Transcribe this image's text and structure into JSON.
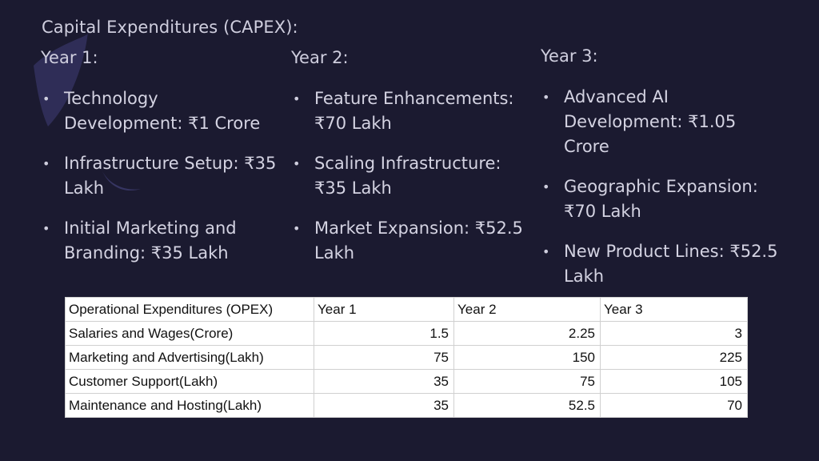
{
  "title": "Capital Expenditures (CAPEX):",
  "capex": [
    {
      "heading": "Year 1:",
      "items": [
        "Technology Development: ₹1 Crore",
        "Infrastructure Setup: ₹35 Lakh",
        "Initial Marketing and Branding: ₹35 Lakh"
      ]
    },
    {
      "heading": "Year 2:",
      "items": [
        "Feature Enhancements: ₹70 Lakh",
        "Scaling Infrastructure: ₹35 Lakh",
        "Market Expansion: ₹52.5 Lakh"
      ]
    },
    {
      "heading": "Year 3:",
      "items": [
        "Advanced AI Development: ₹1.05 Crore",
        "Geographic Expansion: ₹70 Lakh",
        "New Product Lines: ₹52.5 Lakh"
      ]
    }
  ],
  "bullet_char": "•",
  "opex_table": {
    "headers": [
      "Operational Expenditures (OPEX)",
      "Year 1",
      "Year 2",
      "Year 3"
    ],
    "rows": [
      [
        "Salaries and Wages(Crore)",
        "1.5",
        "2.25",
        "3"
      ],
      [
        "Marketing and Advertising(Lakh)",
        "75",
        "150",
        "225"
      ],
      [
        "Customer Support(Lakh)",
        "35",
        "75",
        "105"
      ],
      [
        "Maintenance and Hosting(Lakh)",
        "35",
        "52.5",
        "70"
      ]
    ]
  },
  "colors": {
    "background": "#1b1a30",
    "text": "#d4d3e2",
    "decor": "#3a3868",
    "table_background": "#ffffff"
  }
}
